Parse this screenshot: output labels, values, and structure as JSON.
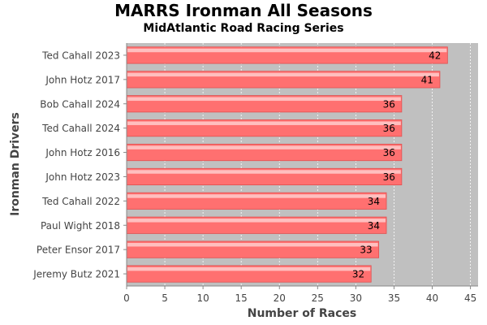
{
  "chart_data": {
    "type": "bar",
    "orientation": "horizontal",
    "title": "MARRS Ironman All Seasons",
    "subtitle": "MidAtlantic Road Racing Series",
    "xlabel": "Number of Races",
    "ylabel": "Ironman Drivers",
    "categories": [
      "Ted Cahall 2023",
      "John Hotz 2017",
      "Bob Cahall 2024",
      "Ted Cahall 2024",
      "John Hotz 2016",
      "John Hotz 2023",
      "Ted Cahall 2022",
      "Paul Wight 2018",
      "Peter Ensor 2017",
      "Jeremy Butz 2021"
    ],
    "values": [
      42,
      41,
      36,
      36,
      36,
      36,
      34,
      34,
      33,
      32
    ],
    "xlim": [
      0,
      46
    ],
    "xticks": [
      0,
      5,
      10,
      15,
      20,
      25,
      30,
      35,
      40,
      45
    ],
    "grid": true,
    "colors": {
      "plot_background": "#c0c0c0",
      "bar_fill": "#ff7070",
      "bar_highlight": "#ffc8c8",
      "bar_edge": "#e05050",
      "gridline": "#ffffff"
    }
  }
}
